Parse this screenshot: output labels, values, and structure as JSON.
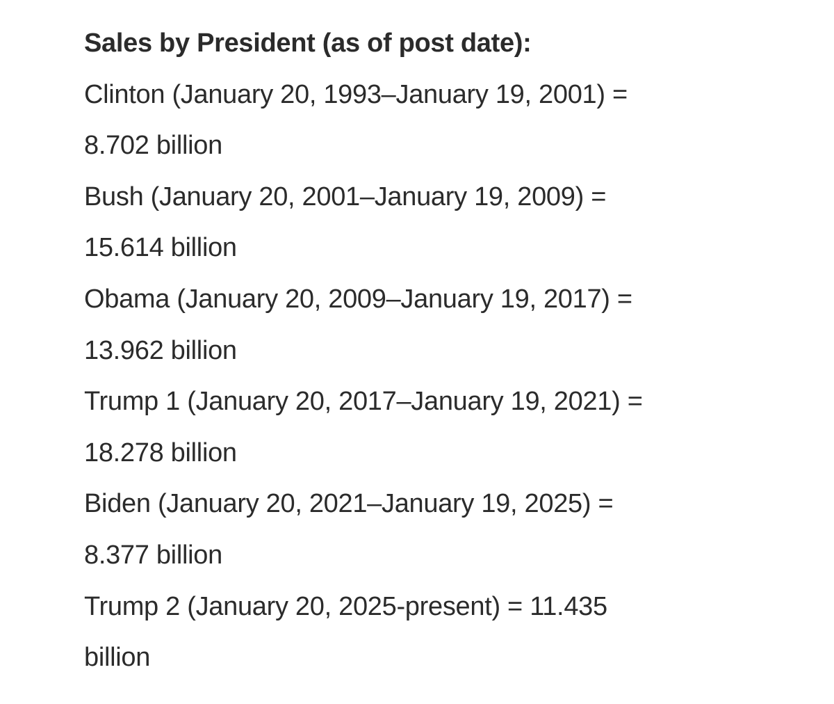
{
  "heading": "Sales by President (as of post date):",
  "entries": [
    {
      "line1": "Clinton (January 20, 1993–January 19, 2001) =",
      "line2": "8.702 billion"
    },
    {
      "line1": "Bush (January 20, 2001–January 19, 2009) =",
      "line2": "15.614 billion"
    },
    {
      "line1": "Obama (January 20, 2009–January 19, 2017) =",
      "line2": "13.962 billion"
    },
    {
      "line1": "Trump 1 (January 20, 2017–January 19, 2021) =",
      "line2": "18.278 billion"
    },
    {
      "line1": "Biden (January 20, 2021–January 19, 2025) =",
      "line2": "8.377 billion"
    },
    {
      "line1": "Trump 2 (January 20, 2025-present) = 11.435",
      "line2": "billion"
    }
  ]
}
